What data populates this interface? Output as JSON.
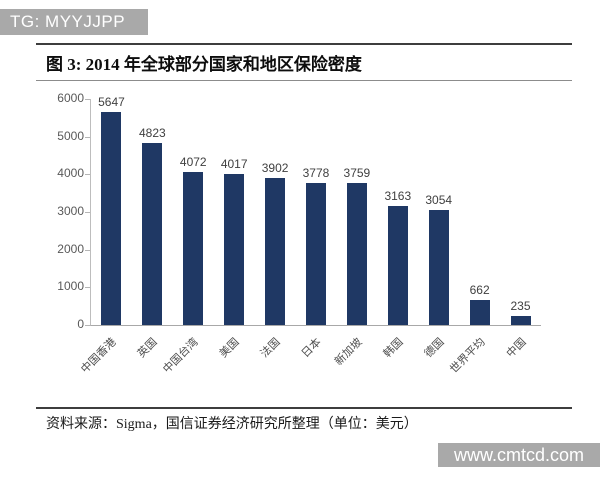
{
  "banner": {
    "label": "TG: MYYJJPP"
  },
  "figure": {
    "title": "图 3: 2014 年全球部分国家和地区保险密度",
    "source": "资料来源：Sigma，国信证券经济研究所整理（单位：美元）"
  },
  "watermark": {
    "label": "www.cmtcd.com"
  },
  "colors": {
    "bar": "#1f3864",
    "banner_bg": "#a9a9a9",
    "watermark_bg": "#a9a9a9",
    "value_label": "#404040",
    "axis_label": "#595959"
  },
  "chart_data": {
    "type": "bar",
    "title": "2014 年全球部分国家和地区保险密度",
    "xlabel": "",
    "ylabel": "",
    "unit_label": "美元",
    "categories": [
      "中国香港",
      "英国",
      "中国台湾",
      "美国",
      "法国",
      "日本",
      "新加坡",
      "韩国",
      "德国",
      "世界平均",
      "中国"
    ],
    "values": [
      5647,
      4823,
      4072,
      4017,
      3902,
      3778,
      3759,
      3163,
      3054,
      662,
      235
    ],
    "ylim": [
      0,
      6000
    ],
    "yticks": [
      0,
      1000,
      2000,
      3000,
      4000,
      5000,
      6000
    ],
    "grid": false,
    "legend": false,
    "bar_color": "#1f3864",
    "value_labels_shown": true
  }
}
